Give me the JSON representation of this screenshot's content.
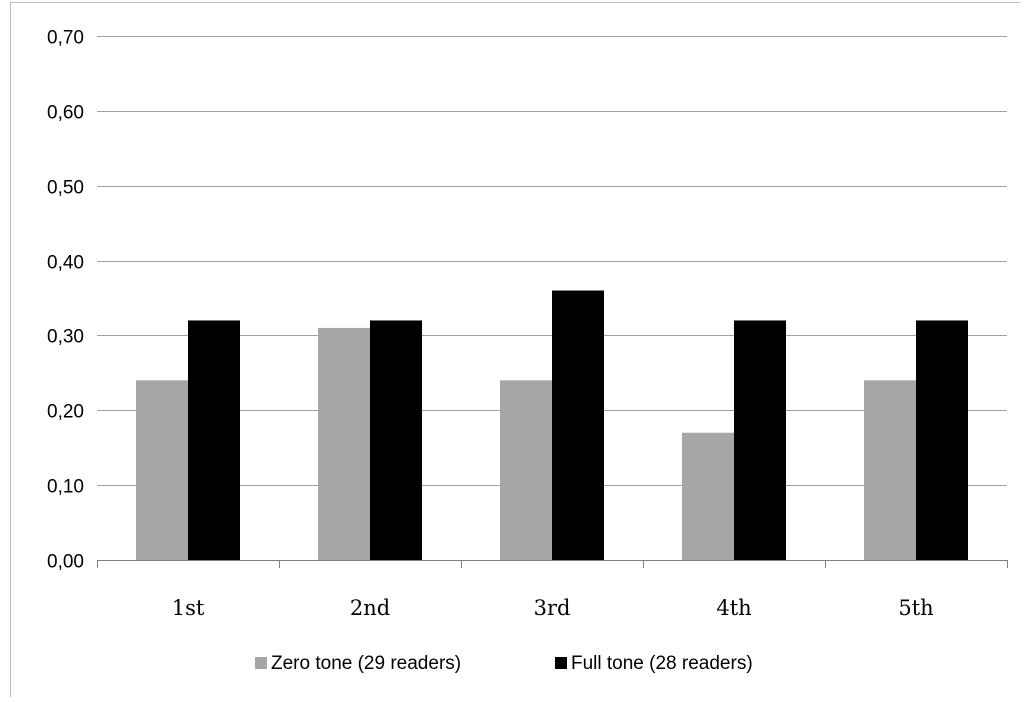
{
  "chart_data": {
    "type": "bar",
    "categories": [
      "1st",
      "2nd",
      "3rd",
      "4th",
      "5th"
    ],
    "series": [
      {
        "name": "Zero tone (29 readers)",
        "values": [
          0.24,
          0.31,
          0.24,
          0.17,
          0.24
        ],
        "color": "#a6a6a6"
      },
      {
        "name": "Full tone (28 readers)",
        "values": [
          0.32,
          0.32,
          0.36,
          0.32,
          0.32
        ],
        "color": "#000000"
      }
    ],
    "yticks": [
      "0,00",
      "0,10",
      "0,20",
      "0,30",
      "0,40",
      "0,50",
      "0,60",
      "0,70"
    ],
    "ylim": [
      0,
      0.7
    ],
    "title": "",
    "xlabel": "",
    "ylabel": "",
    "grid": true,
    "legend_position": "bottom-center",
    "gridline_color": "#a0a0a0"
  }
}
